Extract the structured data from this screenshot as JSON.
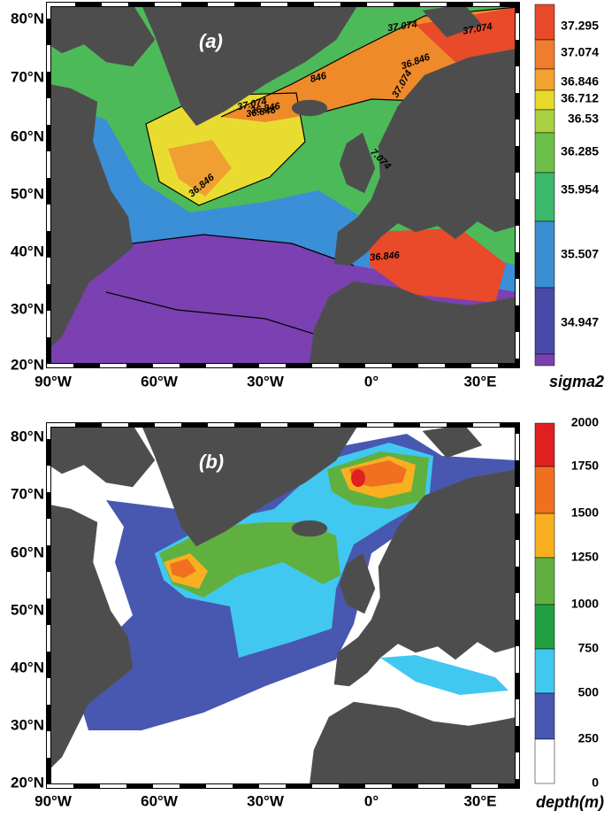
{
  "panels": [
    {
      "label": "(a)",
      "lat_labels": [
        "80°N",
        "70°N",
        "60°N",
        "50°N",
        "40°N",
        "30°N",
        "20°N"
      ],
      "lon_labels": [
        "90°W",
        "60°W",
        "30°W",
        "0°",
        "30°E"
      ],
      "colorbar": {
        "title": "sigma2",
        "ticks": [
          "37.295",
          "37.074",
          "36.846",
          "36.712",
          "36.53",
          "36.285",
          "35.954",
          "35.507",
          "34.947"
        ]
      },
      "contour_labels": [
        "37.074",
        "37.074",
        "846",
        "37.074",
        "36.846",
        "37.074",
        "36.846",
        "36.846",
        "36.846",
        "7.074",
        "36.846"
      ]
    },
    {
      "label": "(b)",
      "lat_labels": [
        "80°N",
        "70°N",
        "60°N",
        "50°N",
        "40°N",
        "30°N",
        "20°N"
      ],
      "lon_labels": [
        "90°W",
        "60°W",
        "30°W",
        "0°",
        "30°E"
      ],
      "colorbar": {
        "title": "depth(m)",
        "ticks": [
          "2000",
          "1750",
          "1500",
          "1250",
          "1000",
          "750",
          "500",
          "250",
          "0"
        ]
      }
    }
  ]
}
